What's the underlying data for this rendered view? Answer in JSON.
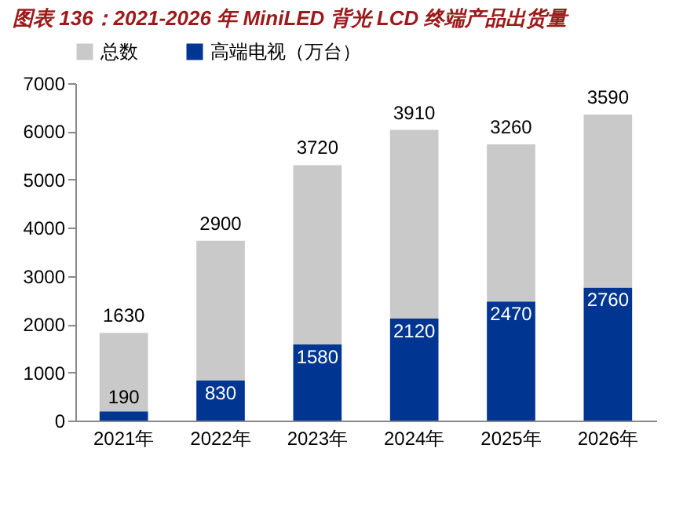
{
  "chart_data": {
    "type": "bar",
    "title": "图表 136：2021-2026 年 MiniLED 背光 LCD 终端产品出货量",
    "categories": [
      "2021年",
      "2022年",
      "2023年",
      "2024年",
      "2025年",
      "2026年"
    ],
    "stacked": true,
    "data_labels": true,
    "legend": "top left",
    "grid": false,
    "ylim": [
      0,
      7000
    ],
    "yticks": [
      0,
      1000,
      2000,
      3000,
      4000,
      5000,
      6000,
      7000
    ],
    "series": [
      {
        "name": "高端电视（万台）",
        "color": "#003591",
        "values": [
          190,
          830,
          1580,
          2120,
          2470,
          2760
        ]
      },
      {
        "name": "总数",
        "color": "#c9c9c9",
        "values": [
          1630,
          2900,
          3720,
          3910,
          3260,
          3590
        ]
      }
    ]
  }
}
